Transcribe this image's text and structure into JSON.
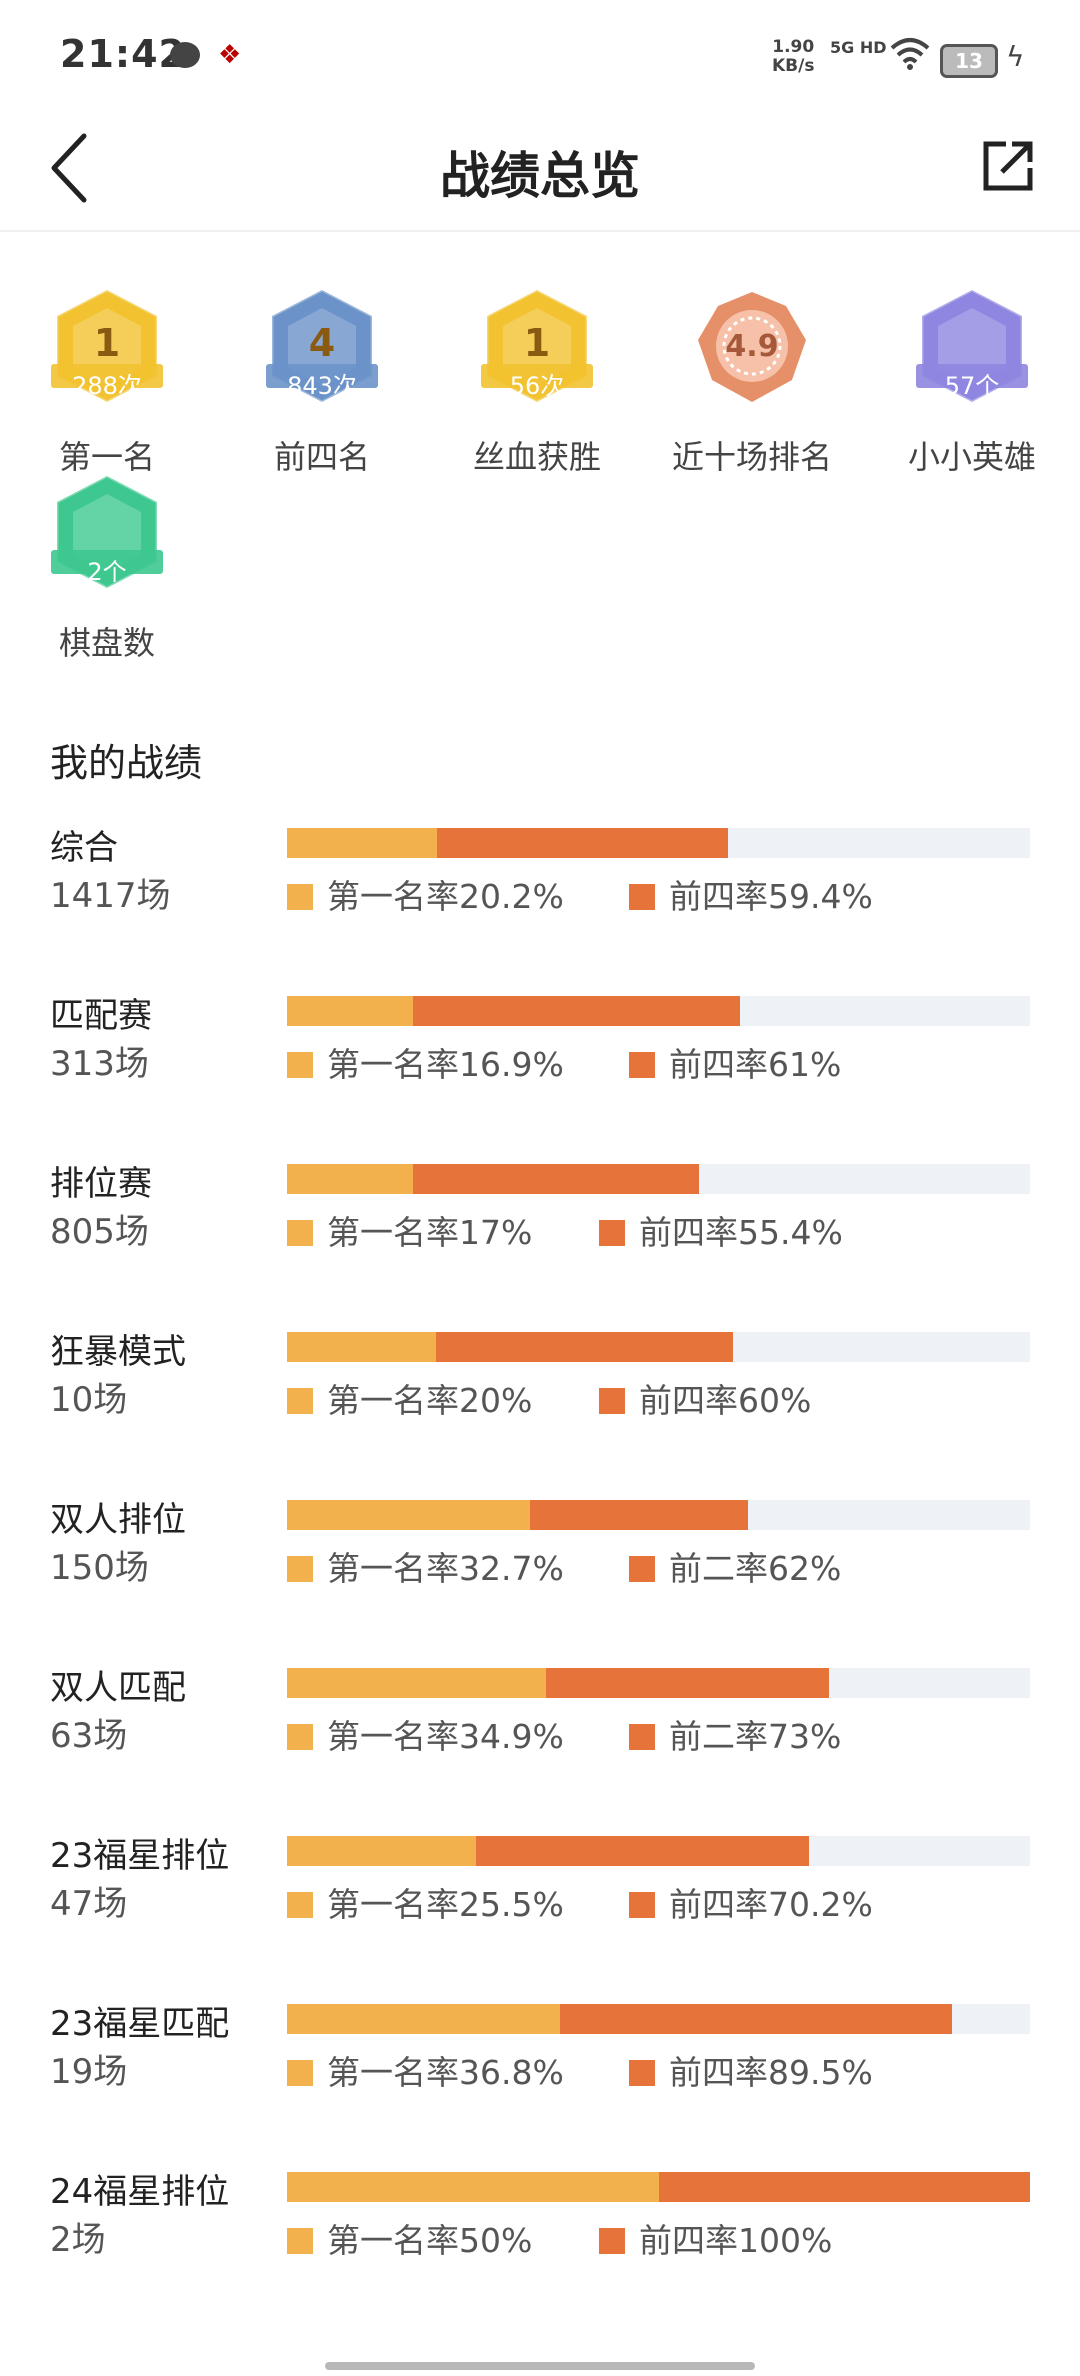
{
  "status_bar": {
    "time": "21:42",
    "speed_value": "1.90",
    "speed_unit": "KB/s",
    "network": "5G HD",
    "battery": "13"
  },
  "header": {
    "title": "战绩总览"
  },
  "badges": [
    {
      "count": "288次",
      "label": "第一名",
      "emblem_text": "1",
      "color": "#f2c230"
    },
    {
      "count": "843次",
      "label": "前四名",
      "emblem_text": "4",
      "color": "#6b93c9"
    },
    {
      "count": "56次",
      "label": "丝血获胜",
      "emblem_text": "1",
      "color": "#f2c230"
    },
    {
      "count": "",
      "label": "近十场排名",
      "emblem_text": "4.9",
      "color": "#e6906a"
    },
    {
      "count": "57个",
      "label": "小小英雄",
      "emblem_text": "",
      "color": "#8e86e0"
    },
    {
      "count": "2个",
      "label": "棋盘数",
      "emblem_text": "",
      "color": "#3ec890"
    }
  ],
  "section_title": "我的战绩",
  "stats": [
    {
      "name": "综合",
      "games": "1417场",
      "first_label": "第一名率20.2%",
      "second_label": "前四率59.4%",
      "first_rate": 0.202,
      "second_rate": 0.594
    },
    {
      "name": "匹配赛",
      "games": "313场",
      "first_label": "第一名率16.9%",
      "second_label": "前四率61%",
      "first_rate": 0.169,
      "second_rate": 0.61
    },
    {
      "name": "排位赛",
      "games": "805场",
      "first_label": "第一名率17%",
      "second_label": "前四率55.4%",
      "first_rate": 0.17,
      "second_rate": 0.554
    },
    {
      "name": "狂暴模式",
      "games": "10场",
      "first_label": "第一名率20%",
      "second_label": "前四率60%",
      "first_rate": 0.2,
      "second_rate": 0.6
    },
    {
      "name": "双人排位",
      "games": "150场",
      "first_label": "第一名率32.7%",
      "second_label": "前二率62%",
      "first_rate": 0.327,
      "second_rate": 0.62
    },
    {
      "name": "双人匹配",
      "games": "63场",
      "first_label": "第一名率34.9%",
      "second_label": "前二率73%",
      "first_rate": 0.349,
      "second_rate": 0.73
    },
    {
      "name": "23福星排位",
      "games": "47场",
      "first_label": "第一名率25.5%",
      "second_label": "前四率70.2%",
      "first_rate": 0.255,
      "second_rate": 0.702
    },
    {
      "name": "23福星匹配",
      "games": "19场",
      "first_label": "第一名率36.8%",
      "second_label": "前四率89.5%",
      "first_rate": 0.368,
      "second_rate": 0.895
    },
    {
      "name": "24福星排位",
      "games": "2场",
      "first_label": "第一名率50%",
      "second_label": "前四率100%",
      "first_rate": 0.5,
      "second_rate": 1.0
    }
  ],
  "colors": {
    "first": "#f3b14e",
    "top4": "#e5733a",
    "track": "#eef2f7"
  }
}
